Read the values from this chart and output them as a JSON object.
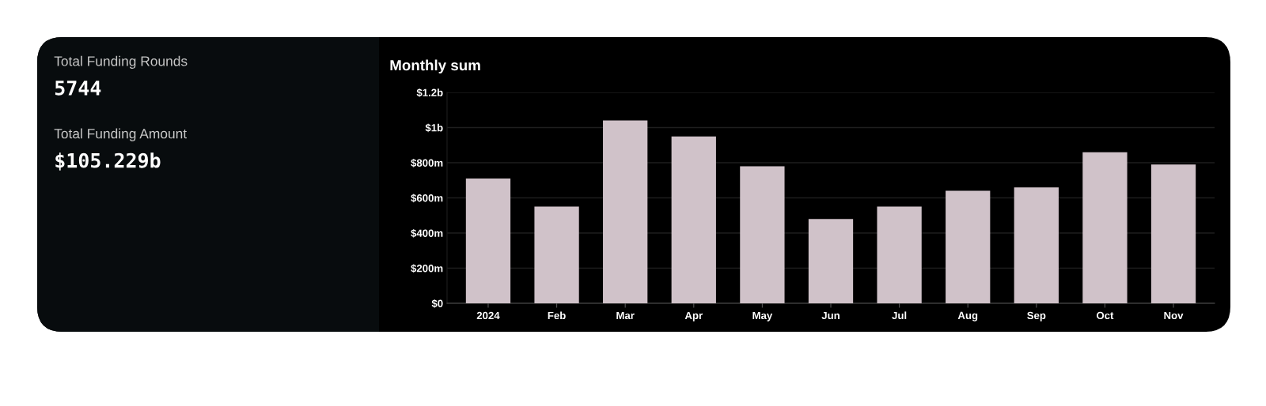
{
  "chart_data": [
    {
      "type": "other",
      "annotations": [
        "Total Funding Rounds",
        "5744",
        "Total Funding Amount",
        "$105.229b"
      ]
    },
    {
      "type": "bar",
      "title": "Monthly sum",
      "categories": [
        "2024",
        "Feb",
        "Mar",
        "Apr",
        "May",
        "Jun",
        "Jul",
        "Aug",
        "Sep",
        "Oct",
        "Nov"
      ],
      "values": [
        710000000,
        550000000,
        1040000000,
        950000000,
        780000000,
        480000000,
        550000000,
        640000000,
        660000000,
        860000000,
        790000000
      ],
      "color": "#d0c2c9",
      "ylim": [
        0,
        1200000000
      ],
      "yticks": [
        {
          "value": 0,
          "label": "$0"
        },
        {
          "value": 200000000,
          "label": "$200m"
        },
        {
          "value": 400000000,
          "label": "$400m"
        },
        {
          "value": 600000000,
          "label": "$600m"
        },
        {
          "value": 800000000,
          "label": "$800m"
        },
        {
          "value": 1000000000,
          "label": "$1b"
        },
        {
          "value": 1200000000,
          "label": "$1.2b"
        }
      ],
      "grid": "y"
    }
  ]
}
